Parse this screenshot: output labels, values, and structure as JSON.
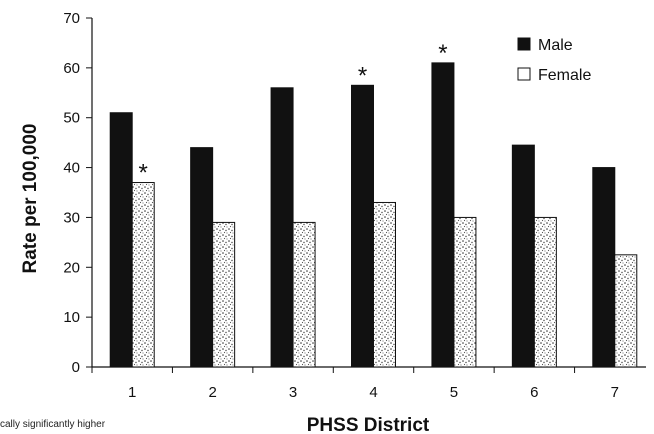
{
  "chart_data": {
    "type": "bar",
    "categories": [
      "1",
      "2",
      "3",
      "4",
      "5",
      "6",
      "7"
    ],
    "series": [
      {
        "name": "Male",
        "values": [
          51,
          44,
          56,
          56.5,
          61,
          44.5,
          40
        ],
        "color": "#111111",
        "pattern": "solid"
      },
      {
        "name": "Female",
        "values": [
          37,
          29,
          29,
          33,
          30,
          30,
          22.5
        ],
        "color": "#ffffff",
        "pattern": "stipple"
      }
    ],
    "significance_markers": [
      {
        "category": "1",
        "series": "Female",
        "label": "*"
      },
      {
        "category": "4",
        "series": "Male",
        "label": "*"
      },
      {
        "category": "5",
        "series": "Male",
        "label": "*"
      }
    ],
    "xlabel": "PHSS District",
    "ylabel": "Rate per 100,000",
    "ylim": [
      0,
      70
    ],
    "yticks": [
      "0",
      "10",
      "20",
      "30",
      "40",
      "50",
      "60",
      "70"
    ],
    "grid": false,
    "legend": {
      "placement": "top-right"
    }
  },
  "footnote": "cally significantly higher"
}
